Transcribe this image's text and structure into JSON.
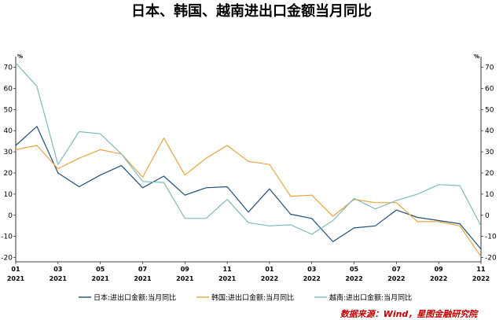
{
  "chart_data": {
    "type": "line",
    "title": "日本、韩国、越南进出口金额当月同比",
    "unit_left": "%",
    "unit_right": "%",
    "ylim": [
      -22,
      75
    ],
    "yticks": [
      -20,
      -10,
      0,
      10,
      20,
      30,
      40,
      50,
      60,
      70
    ],
    "x_tick_labels": [
      {
        "month": "01",
        "year": "2021"
      },
      {
        "month": "03",
        "year": "2021"
      },
      {
        "month": "05",
        "year": "2021"
      },
      {
        "month": "07",
        "year": "2021"
      },
      {
        "month": "09",
        "year": "2021"
      },
      {
        "month": "11",
        "year": "2021"
      },
      {
        "month": "01",
        "year": "2022"
      },
      {
        "month": "03",
        "year": "2022"
      },
      {
        "month": "05",
        "year": "2022"
      },
      {
        "month": "07",
        "year": "2022"
      },
      {
        "month": "09",
        "year": "2022"
      },
      {
        "month": "11",
        "year": "2022"
      }
    ],
    "x": [
      "2021-01",
      "2021-02",
      "2021-03",
      "2021-04",
      "2021-05",
      "2021-06",
      "2021-07",
      "2021-08",
      "2021-09",
      "2021-10",
      "2021-11",
      "2021-12",
      "2022-01",
      "2022-02",
      "2022-03",
      "2022-04",
      "2022-05",
      "2022-06",
      "2022-07",
      "2022-08",
      "2022-09",
      "2022-10",
      "2022-11"
    ],
    "series": [
      {
        "name": "日本:进出口金额:当月同比",
        "color": "#1f4e79",
        "values": [
          33,
          42,
          20,
          13.5,
          19,
          23.5,
          13,
          18.5,
          9.5,
          13,
          13.5,
          1.5,
          12.5,
          0.5,
          -1.5,
          -12.5,
          -6,
          -5,
          2.5,
          -1,
          -2.5,
          -4,
          -16
        ]
      },
      {
        "name": "韩国:进出口金额:当月同比",
        "color": "#e8a33d",
        "values": [
          31,
          33,
          22,
          27,
          31,
          29,
          18,
          36.5,
          19,
          27,
          33,
          25.5,
          24,
          9,
          9.5,
          -0.5,
          7.5,
          6,
          6,
          -3,
          -3,
          -5,
          -19.5
        ]
      },
      {
        "name": "越南:进出口金额:当月同比",
        "color": "#7fb8be",
        "values": [
          72,
          61,
          24,
          39.5,
          38.5,
          29,
          16,
          15.5,
          -1.5,
          -1.5,
          7.5,
          -3.5,
          -5,
          -4.5,
          -9,
          -2.5,
          8,
          3,
          7,
          10,
          14.5,
          14,
          -5
        ]
      }
    ],
    "source": "数据来源：Wind，星图金融研究院",
    "watermark": "星图金融研究院"
  }
}
